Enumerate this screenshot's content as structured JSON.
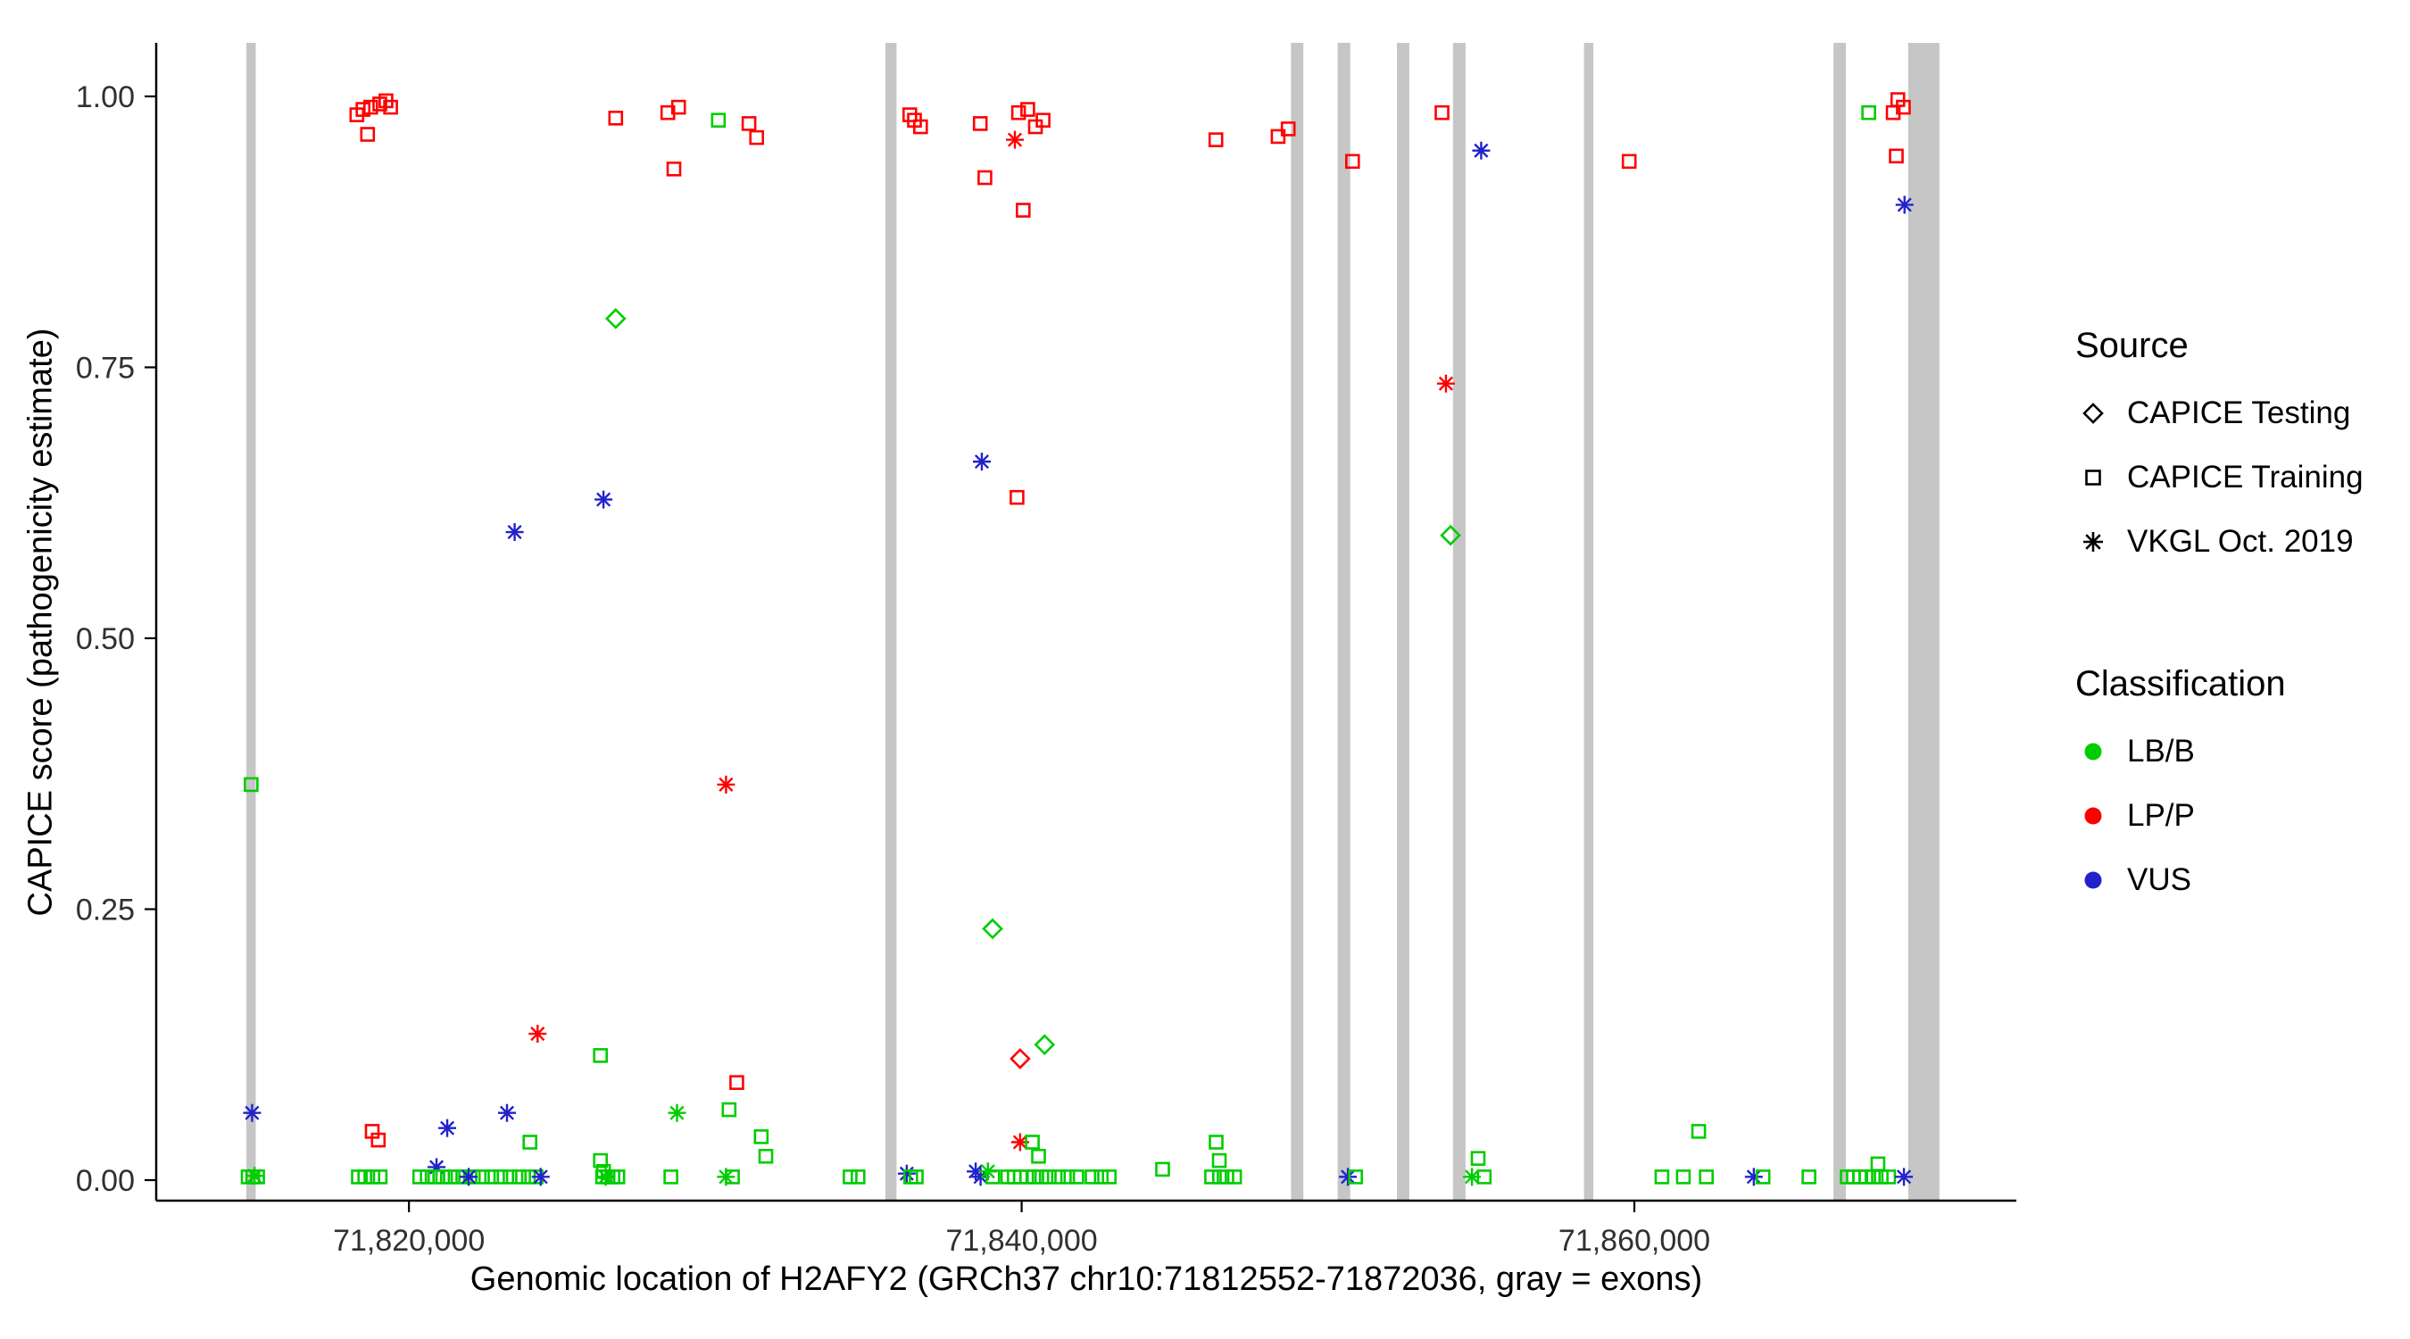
{
  "chart_data": {
    "type": "scatter",
    "title": "",
    "xlabel": "Genomic location of H2AFY2 (GRCh37 chr10:71812552-71872036, gray = exons)",
    "ylabel": "CAPICE score (pathogenicity estimate)",
    "xlim": [
      71812552,
      71872036
    ],
    "ylim": [
      0,
      1
    ],
    "grid": false,
    "x_ticks": [
      {
        "value": 71820000,
        "label": "71,820,000"
      },
      {
        "value": 71840000,
        "label": "71,840,000"
      },
      {
        "value": 71860000,
        "label": "71,860,000"
      }
    ],
    "y_ticks": [
      {
        "value": 0.0,
        "label": "0.00"
      },
      {
        "value": 0.25,
        "label": "0.25"
      },
      {
        "value": 0.5,
        "label": "0.50"
      },
      {
        "value": 0.75,
        "label": "0.75"
      },
      {
        "value": 1.0,
        "label": "1.00"
      }
    ],
    "exon_color": "#C6C6C6",
    "exons": [
      [
        71814690,
        71815000
      ],
      [
        71835550,
        71835915
      ],
      [
        71848790,
        71849195
      ],
      [
        71850315,
        71850725
      ],
      [
        71852250,
        71852655
      ],
      [
        71854080,
        71854490
      ],
      [
        71858355,
        71858660
      ],
      [
        71866500,
        71866905
      ],
      [
        71868940,
        71869960
      ]
    ],
    "legend": {
      "source_title": "Source",
      "source_items": [
        {
          "label": "CAPICE Testing",
          "shape": "diamond"
        },
        {
          "label": "CAPICE Training",
          "shape": "square"
        },
        {
          "label": "VKGL Oct. 2019",
          "shape": "asterisk"
        }
      ],
      "class_title": "Classification",
      "class_items": [
        {
          "label": "LB/B",
          "color": "#00CD00"
        },
        {
          "label": "LP/P",
          "color": "#FF0000"
        },
        {
          "label": "VUS",
          "color": "#2222CC"
        }
      ]
    },
    "class_colors": {
      "LB/B": "#00CD00",
      "LP/P": "#FF0000",
      "VUS": "#2222CC"
    },
    "shape_map": {
      "d": "diamond",
      "s": "square",
      "a": "asterisk"
    },
    "class_map": {
      "g": "LB/B",
      "r": "LP/P",
      "b": "VUS"
    },
    "points_format": [
      "genomic_position",
      "capice_score",
      "shape_code",
      "class_code"
    ],
    "points": [
      [
        71818300,
        0.983,
        "s",
        "r"
      ],
      [
        71818500,
        0.988,
        "s",
        "r"
      ],
      [
        71818750,
        0.99,
        "s",
        "r"
      ],
      [
        71819050,
        0.993,
        "s",
        "r"
      ],
      [
        71819250,
        0.996,
        "s",
        "r"
      ],
      [
        71819400,
        0.99,
        "s",
        "r"
      ],
      [
        71818650,
        0.965,
        "s",
        "r"
      ],
      [
        71826750,
        0.98,
        "s",
        "r"
      ],
      [
        71828450,
        0.985,
        "s",
        "r"
      ],
      [
        71828800,
        0.99,
        "s",
        "r"
      ],
      [
        71828650,
        0.933,
        "s",
        "r"
      ],
      [
        71830100,
        0.978,
        "s",
        "g"
      ],
      [
        71831100,
        0.975,
        "s",
        "r"
      ],
      [
        71831350,
        0.962,
        "s",
        "r"
      ],
      [
        71836350,
        0.983,
        "s",
        "r"
      ],
      [
        71836500,
        0.978,
        "s",
        "r"
      ],
      [
        71836700,
        0.972,
        "s",
        "r"
      ],
      [
        71838650,
        0.975,
        "s",
        "r"
      ],
      [
        71838800,
        0.925,
        "s",
        "r"
      ],
      [
        71839900,
        0.985,
        "s",
        "r"
      ],
      [
        71840200,
        0.988,
        "s",
        "r"
      ],
      [
        71840450,
        0.972,
        "s",
        "r"
      ],
      [
        71840700,
        0.978,
        "s",
        "r"
      ],
      [
        71839780,
        0.96,
        "a",
        "r"
      ],
      [
        71840050,
        0.895,
        "s",
        "r"
      ],
      [
        71839850,
        0.63,
        "s",
        "r"
      ],
      [
        71846340,
        0.96,
        "s",
        "r"
      ],
      [
        71848370,
        0.963,
        "s",
        "r"
      ],
      [
        71848700,
        0.97,
        "s",
        "r"
      ],
      [
        71850800,
        0.94,
        "s",
        "r"
      ],
      [
        71853720,
        0.985,
        "s",
        "r"
      ],
      [
        71855000,
        0.95,
        "a",
        "b"
      ],
      [
        71859830,
        0.94,
        "s",
        "r"
      ],
      [
        71867650,
        0.985,
        "s",
        "g"
      ],
      [
        71868450,
        0.985,
        "s",
        "r"
      ],
      [
        71868600,
        0.997,
        "s",
        "r"
      ],
      [
        71868780,
        0.99,
        "s",
        "r"
      ],
      [
        71868550,
        0.945,
        "s",
        "r"
      ],
      [
        71868820,
        0.9,
        "a",
        "b"
      ],
      [
        71826750,
        0.795,
        "d",
        "g"
      ],
      [
        71823450,
        0.598,
        "a",
        "b"
      ],
      [
        71826350,
        0.628,
        "a",
        "b"
      ],
      [
        71838700,
        0.663,
        "a",
        "b"
      ],
      [
        71853850,
        0.735,
        "a",
        "r"
      ],
      [
        71854000,
        0.595,
        "d",
        "g"
      ],
      [
        71830350,
        0.365,
        "a",
        "r"
      ],
      [
        71814850,
        0.365,
        "s",
        "g"
      ],
      [
        71839050,
        0.232,
        "d",
        "g"
      ],
      [
        71824200,
        0.135,
        "a",
        "r"
      ],
      [
        71826250,
        0.115,
        "s",
        "g"
      ],
      [
        71839950,
        0.112,
        "d",
        "r"
      ],
      [
        71840750,
        0.125,
        "d",
        "g"
      ],
      [
        71830700,
        0.09,
        "s",
        "r"
      ],
      [
        71814880,
        0.062,
        "a",
        "b"
      ],
      [
        71818800,
        0.045,
        "s",
        "r"
      ],
      [
        71819000,
        0.037,
        "s",
        "r"
      ],
      [
        71821250,
        0.048,
        "a",
        "b"
      ],
      [
        71823200,
        0.062,
        "a",
        "b"
      ],
      [
        71820900,
        0.012,
        "a",
        "b"
      ],
      [
        71823950,
        0.035,
        "s",
        "g"
      ],
      [
        71828750,
        0.062,
        "a",
        "g"
      ],
      [
        71830450,
        0.065,
        "s",
        "g"
      ],
      [
        71831500,
        0.04,
        "s",
        "g"
      ],
      [
        71831650,
        0.022,
        "s",
        "g"
      ],
      [
        71839950,
        0.035,
        "a",
        "r"
      ],
      [
        71840350,
        0.035,
        "s",
        "g"
      ],
      [
        71840550,
        0.022,
        "s",
        "g"
      ],
      [
        71846350,
        0.035,
        "s",
        "g"
      ],
      [
        71846450,
        0.018,
        "s",
        "g"
      ],
      [
        71854900,
        0.02,
        "s",
        "g"
      ],
      [
        71862100,
        0.045,
        "s",
        "g"
      ],
      [
        71867950,
        0.015,
        "s",
        "g"
      ],
      [
        71814750,
        0.003,
        "s",
        "g"
      ],
      [
        71814900,
        0.003,
        "s",
        "g"
      ],
      [
        71815060,
        0.003,
        "s",
        "g"
      ],
      [
        71814960,
        0.004,
        "a",
        "g"
      ],
      [
        71818350,
        0.003,
        "s",
        "g"
      ],
      [
        71818560,
        0.003,
        "s",
        "g"
      ],
      [
        71818820,
        0.003,
        "s",
        "g"
      ],
      [
        71819060,
        0.003,
        "s",
        "g"
      ],
      [
        71820350,
        0.003,
        "s",
        "g"
      ],
      [
        71820600,
        0.003,
        "s",
        "g"
      ],
      [
        71820850,
        0.003,
        "s",
        "g"
      ],
      [
        71821100,
        0.003,
        "s",
        "g"
      ],
      [
        71821350,
        0.003,
        "s",
        "g"
      ],
      [
        71821600,
        0.003,
        "s",
        "g"
      ],
      [
        71821850,
        0.003,
        "s",
        "g"
      ],
      [
        71822100,
        0.003,
        "s",
        "g"
      ],
      [
        71822400,
        0.003,
        "s",
        "g"
      ],
      [
        71822700,
        0.003,
        "s",
        "g"
      ],
      [
        71823000,
        0.003,
        "s",
        "g"
      ],
      [
        71823300,
        0.003,
        "s",
        "g"
      ],
      [
        71823600,
        0.003,
        "s",
        "g"
      ],
      [
        71823900,
        0.003,
        "s",
        "g"
      ],
      [
        71824150,
        0.003,
        "s",
        "g"
      ],
      [
        71821950,
        0.003,
        "a",
        "b"
      ],
      [
        71824300,
        0.003,
        "a",
        "b"
      ],
      [
        71826250,
        0.018,
        "s",
        "g"
      ],
      [
        71826350,
        0.008,
        "s",
        "g"
      ],
      [
        71826320,
        0.003,
        "s",
        "g"
      ],
      [
        71826500,
        0.003,
        "s",
        "g"
      ],
      [
        71826660,
        0.003,
        "s",
        "g"
      ],
      [
        71826820,
        0.003,
        "s",
        "g"
      ],
      [
        71826420,
        0.003,
        "a",
        "g"
      ],
      [
        71828550,
        0.003,
        "s",
        "g"
      ],
      [
        71830350,
        0.003,
        "a",
        "g"
      ],
      [
        71830560,
        0.003,
        "s",
        "g"
      ],
      [
        71834400,
        0.003,
        "s",
        "g"
      ],
      [
        71834660,
        0.003,
        "s",
        "g"
      ],
      [
        71836250,
        0.006,
        "a",
        "b"
      ],
      [
        71836380,
        0.003,
        "s",
        "g"
      ],
      [
        71836560,
        0.003,
        "s",
        "g"
      ],
      [
        71838500,
        0.008,
        "a",
        "b"
      ],
      [
        71838660,
        0.003,
        "a",
        "b"
      ],
      [
        71838900,
        0.008,
        "a",
        "g"
      ],
      [
        71839060,
        0.003,
        "s",
        "g"
      ],
      [
        71839550,
        0.003,
        "s",
        "g"
      ],
      [
        71839760,
        0.003,
        "s",
        "g"
      ],
      [
        71839960,
        0.003,
        "s",
        "g"
      ],
      [
        71840160,
        0.003,
        "s",
        "g"
      ],
      [
        71840400,
        0.003,
        "s",
        "g"
      ],
      [
        71840660,
        0.003,
        "s",
        "g"
      ],
      [
        71840900,
        0.003,
        "s",
        "g"
      ],
      [
        71841200,
        0.003,
        "s",
        "g"
      ],
      [
        71841500,
        0.003,
        "s",
        "g"
      ],
      [
        71841800,
        0.003,
        "s",
        "g"
      ],
      [
        71842300,
        0.003,
        "s",
        "g"
      ],
      [
        71842600,
        0.003,
        "s",
        "g"
      ],
      [
        71842860,
        0.003,
        "s",
        "g"
      ],
      [
        71844600,
        0.01,
        "s",
        "g"
      ],
      [
        71846200,
        0.003,
        "s",
        "g"
      ],
      [
        71846460,
        0.003,
        "s",
        "g"
      ],
      [
        71846700,
        0.003,
        "s",
        "g"
      ],
      [
        71846950,
        0.003,
        "s",
        "g"
      ],
      [
        71850650,
        0.003,
        "a",
        "b"
      ],
      [
        71850900,
        0.003,
        "s",
        "g"
      ],
      [
        71854700,
        0.003,
        "a",
        "g"
      ],
      [
        71855100,
        0.003,
        "s",
        "g"
      ],
      [
        71860900,
        0.003,
        "s",
        "g"
      ],
      [
        71861600,
        0.003,
        "s",
        "g"
      ],
      [
        71862350,
        0.003,
        "s",
        "g"
      ],
      [
        71863900,
        0.003,
        "a",
        "b"
      ],
      [
        71864200,
        0.003,
        "s",
        "g"
      ],
      [
        71865700,
        0.003,
        "s",
        "g"
      ],
      [
        71866950,
        0.003,
        "s",
        "g"
      ],
      [
        71867150,
        0.003,
        "s",
        "g"
      ],
      [
        71867350,
        0.003,
        "s",
        "g"
      ],
      [
        71867560,
        0.003,
        "s",
        "g"
      ],
      [
        71867800,
        0.003,
        "s",
        "g"
      ],
      [
        71868060,
        0.003,
        "s",
        "g"
      ],
      [
        71868300,
        0.003,
        "s",
        "g"
      ],
      [
        71868800,
        0.003,
        "a",
        "b"
      ]
    ]
  }
}
